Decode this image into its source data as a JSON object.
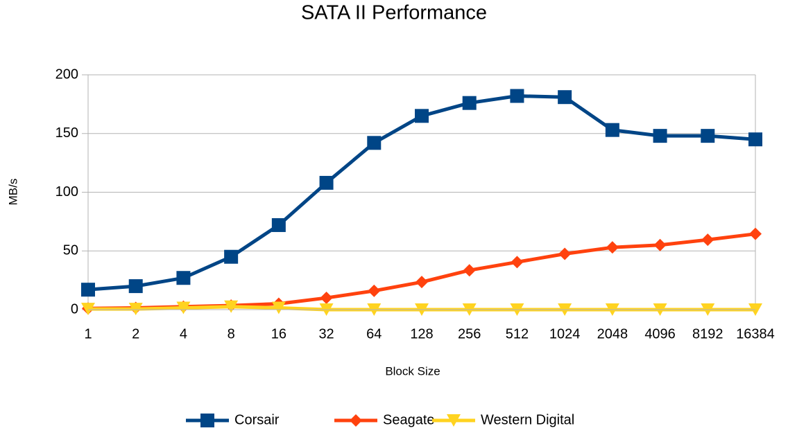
{
  "chart_data": {
    "type": "line",
    "title": "SATA II Performance",
    "x_label": "Block Size",
    "y_label": "MB/s",
    "categories": [
      "1",
      "2",
      "4",
      "8",
      "16",
      "32",
      "64",
      "128",
      "256",
      "512",
      "1024",
      "2048",
      "4096",
      "8192",
      "16384"
    ],
    "series": [
      {
        "name": "Corsair",
        "color": "#004586",
        "marker": "square",
        "values": [
          17,
          20,
          27,
          45,
          72,
          108,
          142,
          165,
          176,
          182,
          181,
          153,
          148,
          148,
          145
        ]
      },
      {
        "name": "Seagate",
        "color": "#ff420e",
        "marker": "diamond",
        "values": [
          1,
          1.5,
          2.5,
          3.5,
          5,
          10,
          16,
          23.5,
          33.5,
          40.5,
          47.5,
          53,
          55,
          59.5,
          64.5
        ]
      },
      {
        "name": "Western Digital",
        "color": "#ffd320",
        "marker": "triangle-down",
        "values": [
          0.5,
          0.5,
          1.5,
          2.5,
          1.5,
          0,
          0,
          0,
          0,
          0,
          0,
          0,
          0,
          0,
          0
        ]
      }
    ],
    "ylim": [
      0,
      200
    ],
    "yticks": [
      0,
      50,
      100,
      150,
      200
    ],
    "grid": true,
    "legend": "bottom"
  }
}
